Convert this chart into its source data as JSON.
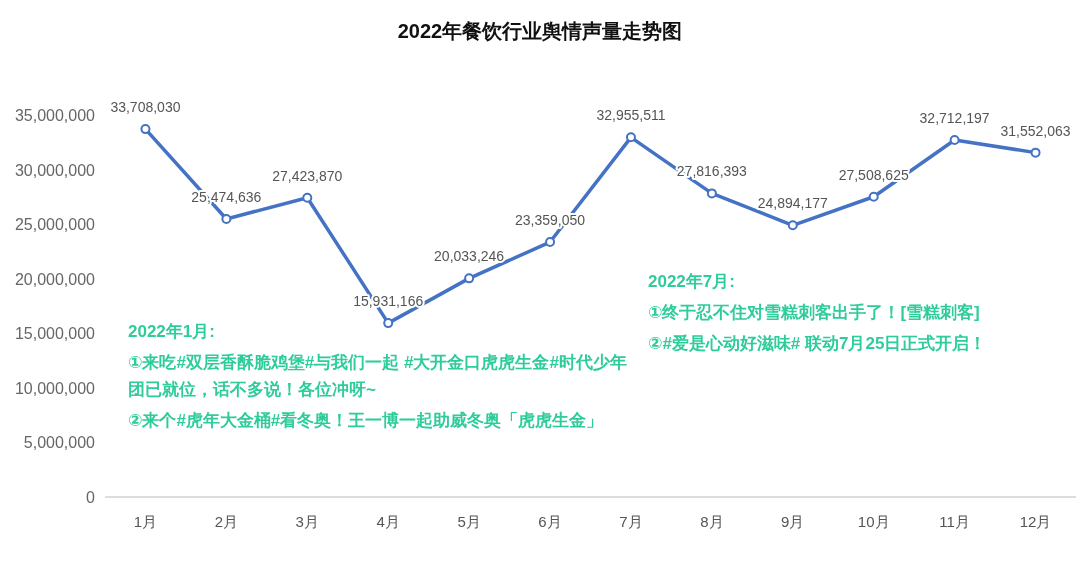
{
  "chart_data": {
    "type": "line",
    "title": "2022年餐饮行业舆情声量走势图",
    "categories": [
      "1月",
      "2月",
      "3月",
      "4月",
      "5月",
      "6月",
      "7月",
      "8月",
      "9月",
      "10月",
      "11月",
      "12月"
    ],
    "series": [
      {
        "color": "#4472c4",
        "values": [
          33708030,
          25474636,
          27423870,
          15931166,
          20033246,
          23359050,
          32955511,
          27816393,
          24894177,
          27508625,
          32712197,
          31552063
        ]
      }
    ],
    "ylim": [
      0,
      35000000
    ],
    "value_labels": [
      "33,708,030",
      "25,474,636",
      "27,423,870",
      "15,931,166",
      "20,033,246",
      "23,359,050",
      "32,955,511",
      "27,816,393",
      "24,894,177",
      "27,508,625",
      "32,712,197",
      "31,552,063"
    ],
    "yticks": [
      {
        "value": 0,
        "label": "0"
      },
      {
        "value": 5000000,
        "label": "5,000,000"
      },
      {
        "value": 10000000,
        "label": "10,000,000"
      },
      {
        "value": 15000000,
        "label": "15,000,000"
      },
      {
        "value": 20000000,
        "label": "20,000,000"
      },
      {
        "value": 25000000,
        "label": "25,000,000"
      },
      {
        "value": 30000000,
        "label": "30,000,000"
      },
      {
        "value": 35000000,
        "label": "35,000,000"
      }
    ],
    "grid": false,
    "marker": "circle",
    "line_style": "solid",
    "annotations": [
      "2022年1月:",
      "①来吃#双层香酥脆鸡堡#与我们一起 #大开金口虎虎生金#时代少年团已就位，话不多说！各位冲呀~",
      "②来个#虎年大金桶#看冬奥！王一博一起助威冬奥「虎虎生金」",
      "2022年7月:",
      "①终于忍不住对雪糕刺客出手了！[雪糕刺客]",
      "②#爱是心动好滋味# 联动7月25日正式开启！"
    ]
  }
}
